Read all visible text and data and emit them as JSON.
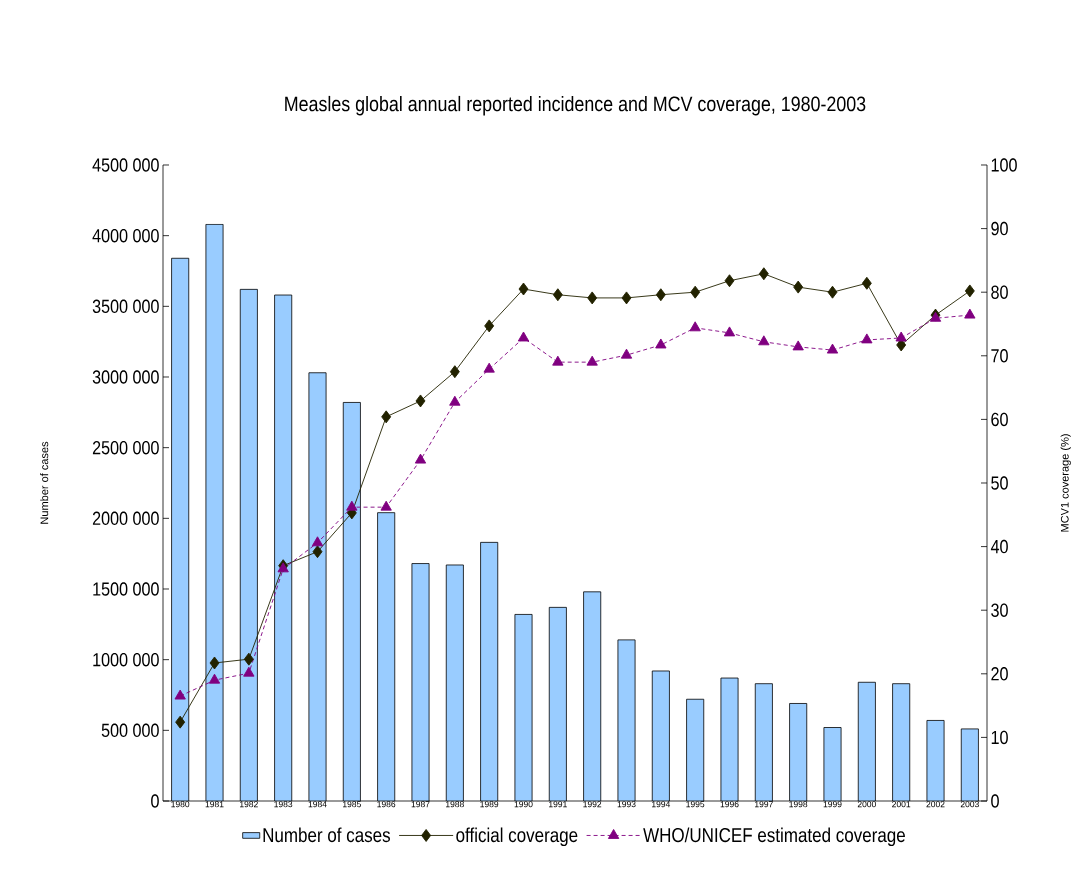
{
  "chart_data": {
    "type": "bar",
    "title": "Measles global annual reported incidence and MCV coverage, 1980-2003",
    "ylabel": "Number of cases",
    "y2label": "MCV1 coverage (%)",
    "categories": [
      "1980",
      "1981",
      "1982",
      "1983",
      "1984",
      "1985",
      "1986",
      "1987",
      "1988",
      "1989",
      "1990",
      "1991",
      "1992",
      "1993",
      "1994",
      "1995",
      "1996",
      "1997",
      "1998",
      "1999",
      "2000",
      "2001",
      "2002",
      "2003"
    ],
    "series": [
      {
        "name": "Number of cases",
        "color": "#99ccff",
        "values": [
          3840000,
          4080000,
          3620000,
          3580000,
          3030000,
          2820000,
          2040000,
          1680000,
          1670000,
          1830000,
          1320000,
          1370000,
          1480000,
          1140000,
          920000,
          720000,
          870000,
          830000,
          690000,
          520000,
          840000,
          830000,
          570000,
          510000
        ]
      },
      {
        "name": "official coverage",
        "type": "line",
        "axis": "y2",
        "color": "#222200",
        "marker": "diamond",
        "line_style": "solid",
        "values": [
          12.4,
          21.7,
          22.3,
          37,
          39.2,
          45.3,
          60.4,
          62.9,
          67.5,
          74.7,
          80.5,
          79.6,
          79.1,
          79.1,
          79.6,
          80,
          81.8,
          82.9,
          80.8,
          80,
          81.4,
          71.7,
          76.4,
          80.2
        ]
      },
      {
        "name": "WHO/UNICEF estimated coverage",
        "type": "line",
        "axis": "y2",
        "color": "#800080",
        "marker": "triangle",
        "line_style": "dashed",
        "values": [
          16.5,
          19,
          20.1,
          36.5,
          40.6,
          46.2,
          46.2,
          53.6,
          62.7,
          67.9,
          72.8,
          69,
          69,
          70.1,
          71.7,
          74.4,
          73.6,
          72.2,
          71.4,
          70.9,
          72.5,
          72.8,
          75.9,
          76.4
        ]
      }
    ],
    "ylim": [
      0,
      4500000
    ],
    "yticks": [
      0,
      {
        "value": 500000,
        "label": "500 000"
      },
      {
        "value": 1000000,
        "label": "1000 000"
      },
      {
        "value": 1500000,
        "label": "1500 000"
      },
      {
        "value": 2000000,
        "label": "2000 000"
      },
      {
        "value": 2500000,
        "label": "2500 000"
      },
      {
        "value": 3000000,
        "label": "3000 000"
      },
      {
        "value": 3500000,
        "label": "3500 000"
      },
      {
        "value": 4000000,
        "label": "4000 000"
      },
      {
        "value": 4500000,
        "label": "4500 000"
      }
    ],
    "y2lim": [
      0,
      100
    ],
    "y2ticks": [
      0,
      10,
      20,
      30,
      40,
      50,
      60,
      70,
      80,
      90,
      100
    ],
    "legend": "bottom"
  }
}
